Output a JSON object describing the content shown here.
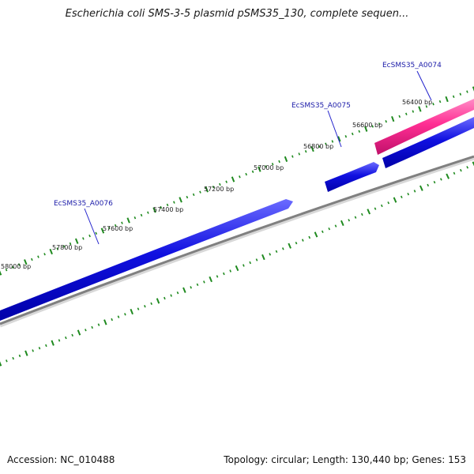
{
  "title": "Escherichia coli SMS-3-5 plasmid pSMS35_130, complete sequen...",
  "footer": {
    "accession": "Accession: NC_010488",
    "summary": "Topology: circular; Length: 130,440 bp; Genes: 153"
  },
  "ruler_labels": [
    {
      "text": "56400 bp"
    },
    {
      "text": "56600 bp"
    },
    {
      "text": "56800 bp"
    },
    {
      "text": "57000 bp"
    },
    {
      "text": "57200 bp"
    },
    {
      "text": "57400 bp"
    },
    {
      "text": "57600 bp"
    },
    {
      "text": "57800 bp"
    },
    {
      "text": "58000 bp"
    }
  ],
  "genes": [
    {
      "name": "EcSMS35_A0074",
      "strand": "reverse",
      "color": "#ff2e93"
    },
    {
      "name": "EcSMS35_A0075",
      "strand": "forward",
      "color": "#1010e0"
    },
    {
      "name": "EcSMS35_A0076",
      "strand": "forward",
      "color": "#1010e0"
    }
  ],
  "colors": {
    "backbone": "#8c8c8c",
    "ruler": "#1f8a1f",
    "forward_gene": "#1010e0",
    "reverse_gene": "#ff2e93",
    "label_line": "#2222cc"
  }
}
